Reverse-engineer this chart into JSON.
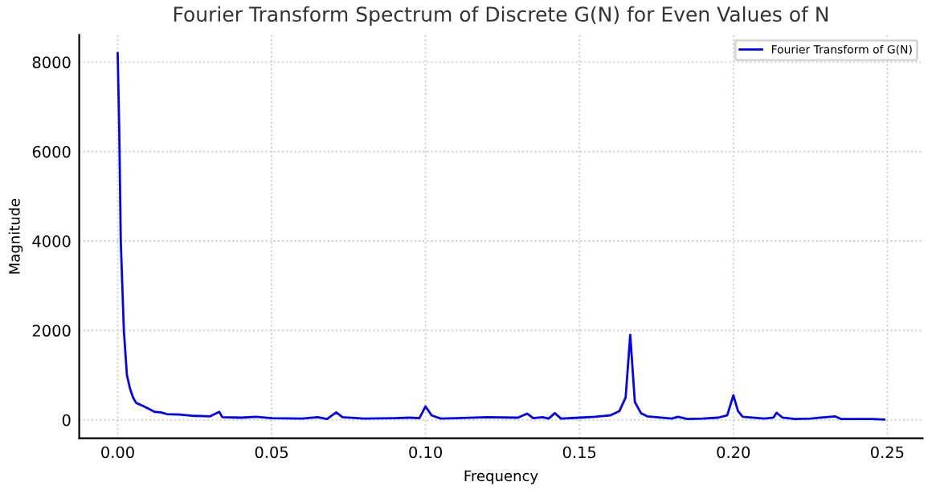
{
  "chart_data": {
    "type": "line",
    "title": "Fourier Transform Spectrum of Discrete G(N) for Even Values of N",
    "xlabel": "Frequency",
    "ylabel": "Magnitude",
    "xlim": [
      -0.0125,
      0.2615
    ],
    "ylim": [
      -410,
      8610
    ],
    "xticks": [
      {
        "value": 0,
        "label": "0.00"
      },
      0.05,
      {
        "value": 0.1,
        "label": "0.10"
      },
      0.15,
      {
        "value": 0.2,
        "label": "0.20"
      },
      0.25
    ],
    "yticks": [
      0,
      2000,
      4000,
      6000,
      8000
    ],
    "grid": true,
    "legend": "top right",
    "line_style": "solid",
    "marker": "none",
    "series": [
      {
        "name": "Fourier Transform of G(N)",
        "color": "#0000ff",
        "x": [
          0,
          0.0005,
          0.001,
          0.002,
          0.003,
          0.004,
          0.005,
          0.006,
          0.008,
          0.01,
          0.012,
          0.014,
          0.016,
          0.02,
          0.025,
          0.03,
          0.033,
          0.034,
          0.04,
          0.045,
          0.05,
          0.06,
          0.065,
          0.068,
          0.071,
          0.073,
          0.08,
          0.09,
          0.095,
          0.098,
          0.1,
          0.102,
          0.105,
          0.11,
          0.12,
          0.13,
          0.133,
          0.135,
          0.138,
          0.14,
          0.142,
          0.144,
          0.15,
          0.155,
          0.16,
          0.163,
          0.165,
          0.1665,
          0.168,
          0.17,
          0.172,
          0.175,
          0.18,
          0.182,
          0.185,
          0.19,
          0.195,
          0.198,
          0.2,
          0.2015,
          0.203,
          0.21,
          0.213,
          0.214,
          0.216,
          0.22,
          0.225,
          0.23,
          0.233,
          0.235,
          0.24,
          0.245,
          0.249
        ],
        "values": [
          8200,
          6500,
          4000,
          2000,
          1000,
          700,
          500,
          380,
          320,
          250,
          180,
          170,
          130,
          120,
          90,
          80,
          180,
          60,
          50,
          70,
          40,
          30,
          60,
          20,
          170,
          60,
          30,
          40,
          50,
          40,
          300,
          100,
          30,
          40,
          60,
          50,
          140,
          40,
          60,
          30,
          150,
          30,
          50,
          70,
          100,
          200,
          500,
          1900,
          400,
          150,
          80,
          60,
          30,
          70,
          20,
          30,
          50,
          100,
          550,
          200,
          70,
          30,
          50,
          160,
          50,
          20,
          30,
          60,
          80,
          20,
          20,
          20,
          10
        ]
      }
    ]
  }
}
